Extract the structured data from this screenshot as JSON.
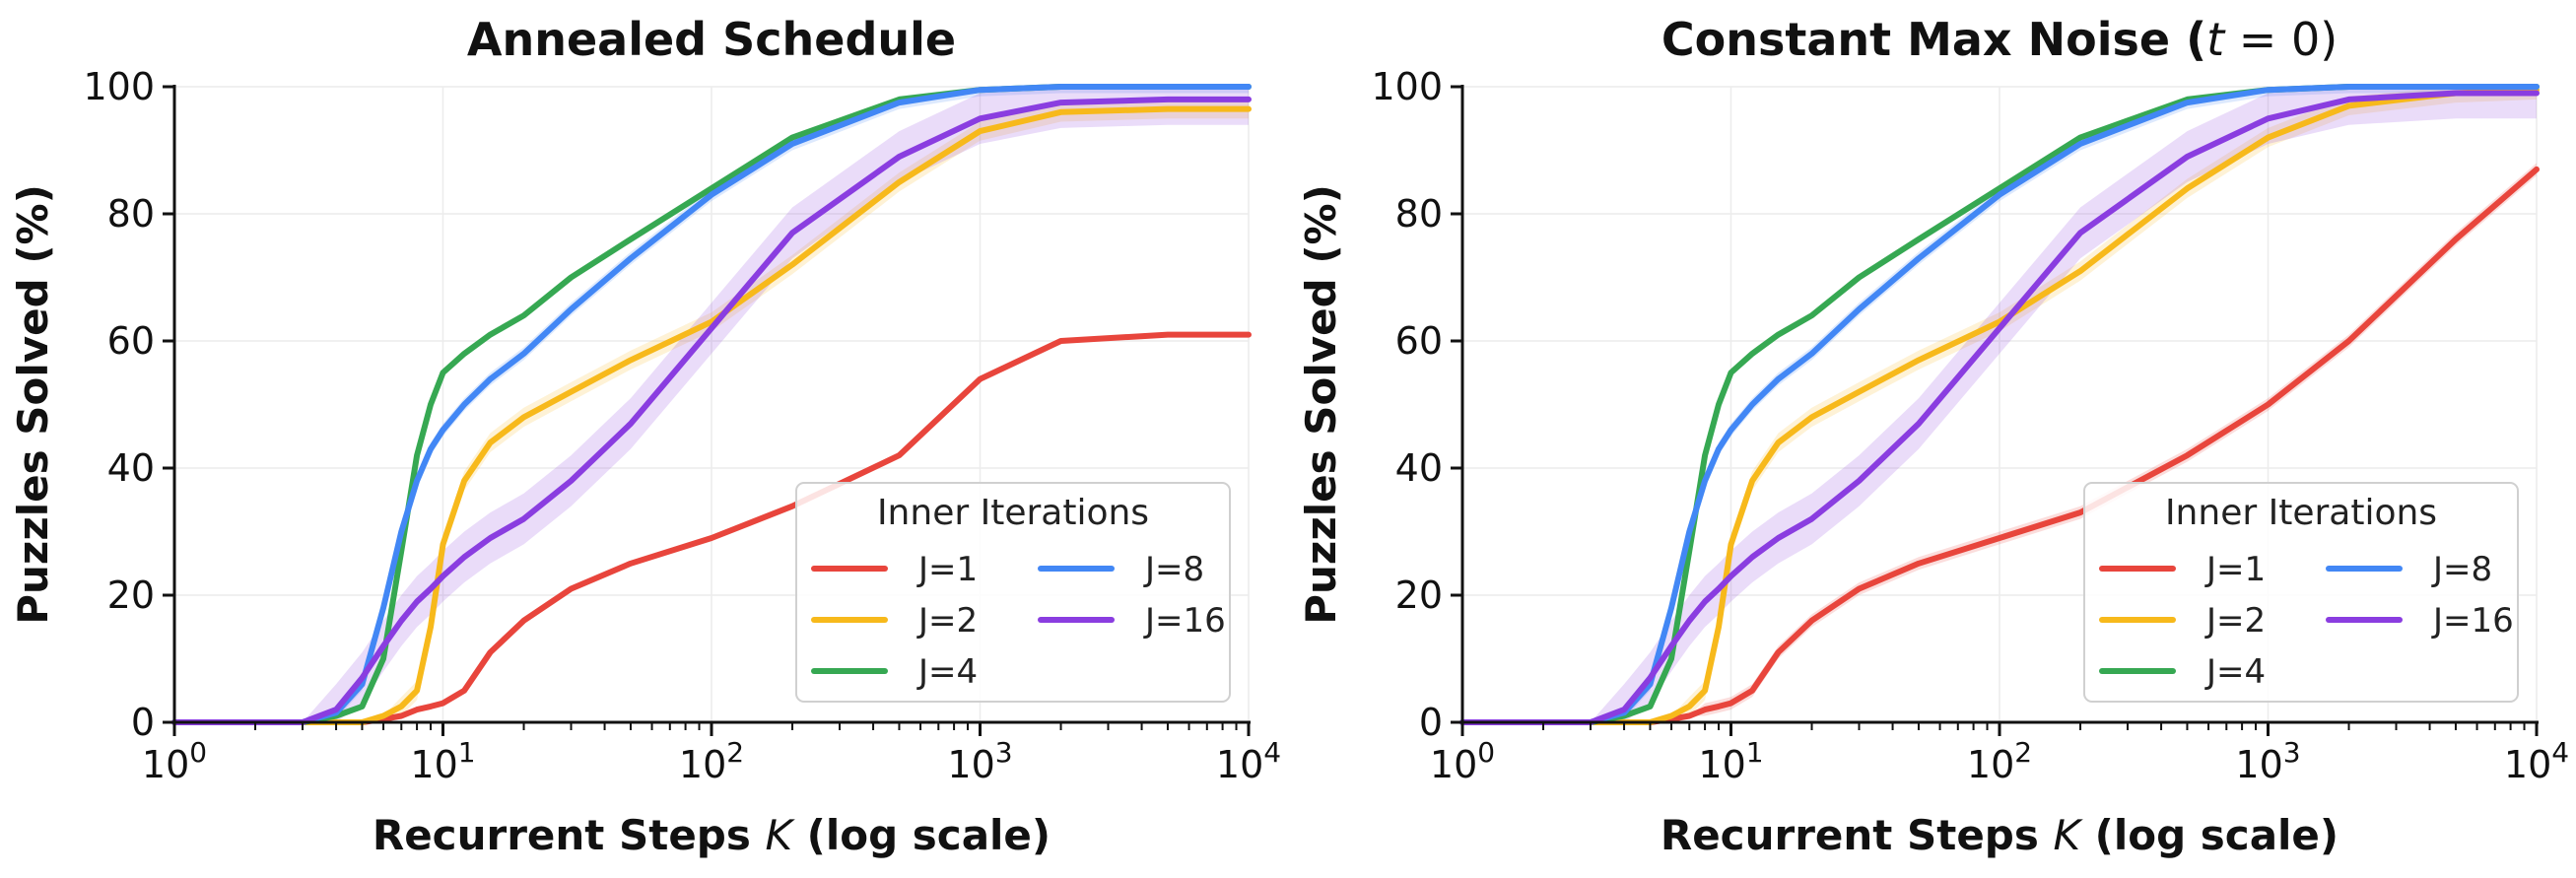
{
  "chart_data": [
    {
      "type": "line",
      "title": "Annealed Schedule",
      "xlabel": "Recurrent Steps K (log scale)",
      "ylabel": "Puzzles Solved (%)",
      "x_scale": "log",
      "xlim": [
        1,
        10000
      ],
      "ylim": [
        0,
        100
      ],
      "x_ticks": [
        1,
        10,
        100,
        1000,
        10000
      ],
      "x_tick_labels": [
        "10^0",
        "10^1",
        "10^2",
        "10^3",
        "10^4"
      ],
      "y_ticks": [
        0,
        20,
        40,
        60,
        80,
        100
      ],
      "y_tick_labels": [
        "0",
        "20",
        "40",
        "60",
        "80",
        "100"
      ],
      "grid": true,
      "legend": {
        "title": "Inner Iterations",
        "position": "bottom-right",
        "columns": 2
      },
      "x": [
        1,
        3,
        4,
        5,
        6,
        7,
        8,
        9,
        10,
        12,
        15,
        20,
        30,
        50,
        100,
        200,
        500,
        1000,
        2000,
        5000,
        10000
      ],
      "series": [
        {
          "name": "J=1",
          "color": "#e8453c",
          "values": [
            0,
            0,
            0,
            0,
            0.5,
            1,
            2,
            2.5,
            3,
            5,
            11,
            16,
            21,
            25,
            29,
            34,
            42,
            54,
            60,
            61,
            61
          ],
          "band": 0
        },
        {
          "name": "J=2",
          "color": "#f7b91b",
          "values": [
            0,
            0,
            0,
            0,
            1,
            2.5,
            5,
            15,
            28,
            38,
            44,
            48,
            52,
            57,
            63,
            72,
            85,
            93,
            96,
            96.5,
            96.5
          ],
          "band": 1.5
        },
        {
          "name": "J=4",
          "color": "#36a852",
          "values": [
            0,
            0,
            1,
            2.5,
            10,
            27,
            42,
            50,
            55,
            58,
            61,
            64,
            70,
            76,
            84,
            92,
            98,
            99.5,
            100,
            100,
            100
          ],
          "band": 0
        },
        {
          "name": "J=8",
          "color": "#4287f5",
          "values": [
            0,
            0,
            1.5,
            6,
            18,
            30,
            38,
            43,
            46,
            50,
            54,
            58,
            65,
            73,
            83,
            91,
            97.5,
            99.5,
            100,
            100,
            100
          ],
          "band": 1
        },
        {
          "name": "J=16",
          "color": "#8a3de0",
          "values": [
            0,
            0,
            2,
            7,
            12,
            16,
            19,
            21,
            23,
            26,
            29,
            32,
            38,
            47,
            62,
            77,
            89,
            95,
            97.5,
            98,
            98
          ],
          "band": 4
        }
      ]
    },
    {
      "type": "line",
      "title": "Constant Max Noise (",
      "title_math": "t",
      "title_tail": " = 0)",
      "xlabel": "Recurrent Steps K (log scale)",
      "ylabel": "Puzzles Solved (%)",
      "x_scale": "log",
      "xlim": [
        1,
        10000
      ],
      "ylim": [
        0,
        100
      ],
      "x_ticks": [
        1,
        10,
        100,
        1000,
        10000
      ],
      "x_tick_labels": [
        "10^0",
        "10^1",
        "10^2",
        "10^3",
        "10^4"
      ],
      "y_ticks": [
        0,
        20,
        40,
        60,
        80,
        100
      ],
      "y_tick_labels": [
        "0",
        "20",
        "40",
        "60",
        "80",
        "100"
      ],
      "grid": true,
      "legend": {
        "title": "Inner Iterations",
        "position": "bottom-right",
        "columns": 2
      },
      "x": [
        1,
        3,
        4,
        5,
        6,
        7,
        8,
        9,
        10,
        12,
        15,
        20,
        30,
        50,
        100,
        200,
        500,
        1000,
        2000,
        5000,
        10000
      ],
      "series": [
        {
          "name": "J=1",
          "color": "#e8453c",
          "values": [
            0,
            0,
            0,
            0,
            0.5,
            1,
            2,
            2.5,
            3,
            5,
            11,
            16,
            21,
            25,
            29,
            33,
            42,
            50,
            60,
            76,
            87
          ],
          "band": 1
        },
        {
          "name": "J=2",
          "color": "#f7b91b",
          "values": [
            0,
            0,
            0,
            0,
            1,
            2.5,
            5,
            15,
            28,
            38,
            44,
            48,
            52,
            57,
            63,
            71,
            84,
            92,
            97,
            99,
            99.5
          ],
          "band": 1.5
        },
        {
          "name": "J=4",
          "color": "#36a852",
          "values": [
            0,
            0,
            1,
            2.5,
            10,
            27,
            42,
            50,
            55,
            58,
            61,
            64,
            70,
            76,
            84,
            92,
            98,
            99.5,
            100,
            100,
            100
          ],
          "band": 0
        },
        {
          "name": "J=8",
          "color": "#4287f5",
          "values": [
            0,
            0,
            1.5,
            6,
            18,
            30,
            38,
            43,
            46,
            50,
            54,
            58,
            65,
            73,
            83,
            91,
            97.5,
            99.5,
            100,
            100,
            100
          ],
          "band": 1
        },
        {
          "name": "J=16",
          "color": "#8a3de0",
          "values": [
            0,
            0,
            2,
            7,
            12,
            16,
            19,
            21,
            23,
            26,
            29,
            32,
            38,
            47,
            62,
            77,
            89,
            95,
            98,
            99,
            99
          ],
          "band": 4
        }
      ]
    }
  ]
}
